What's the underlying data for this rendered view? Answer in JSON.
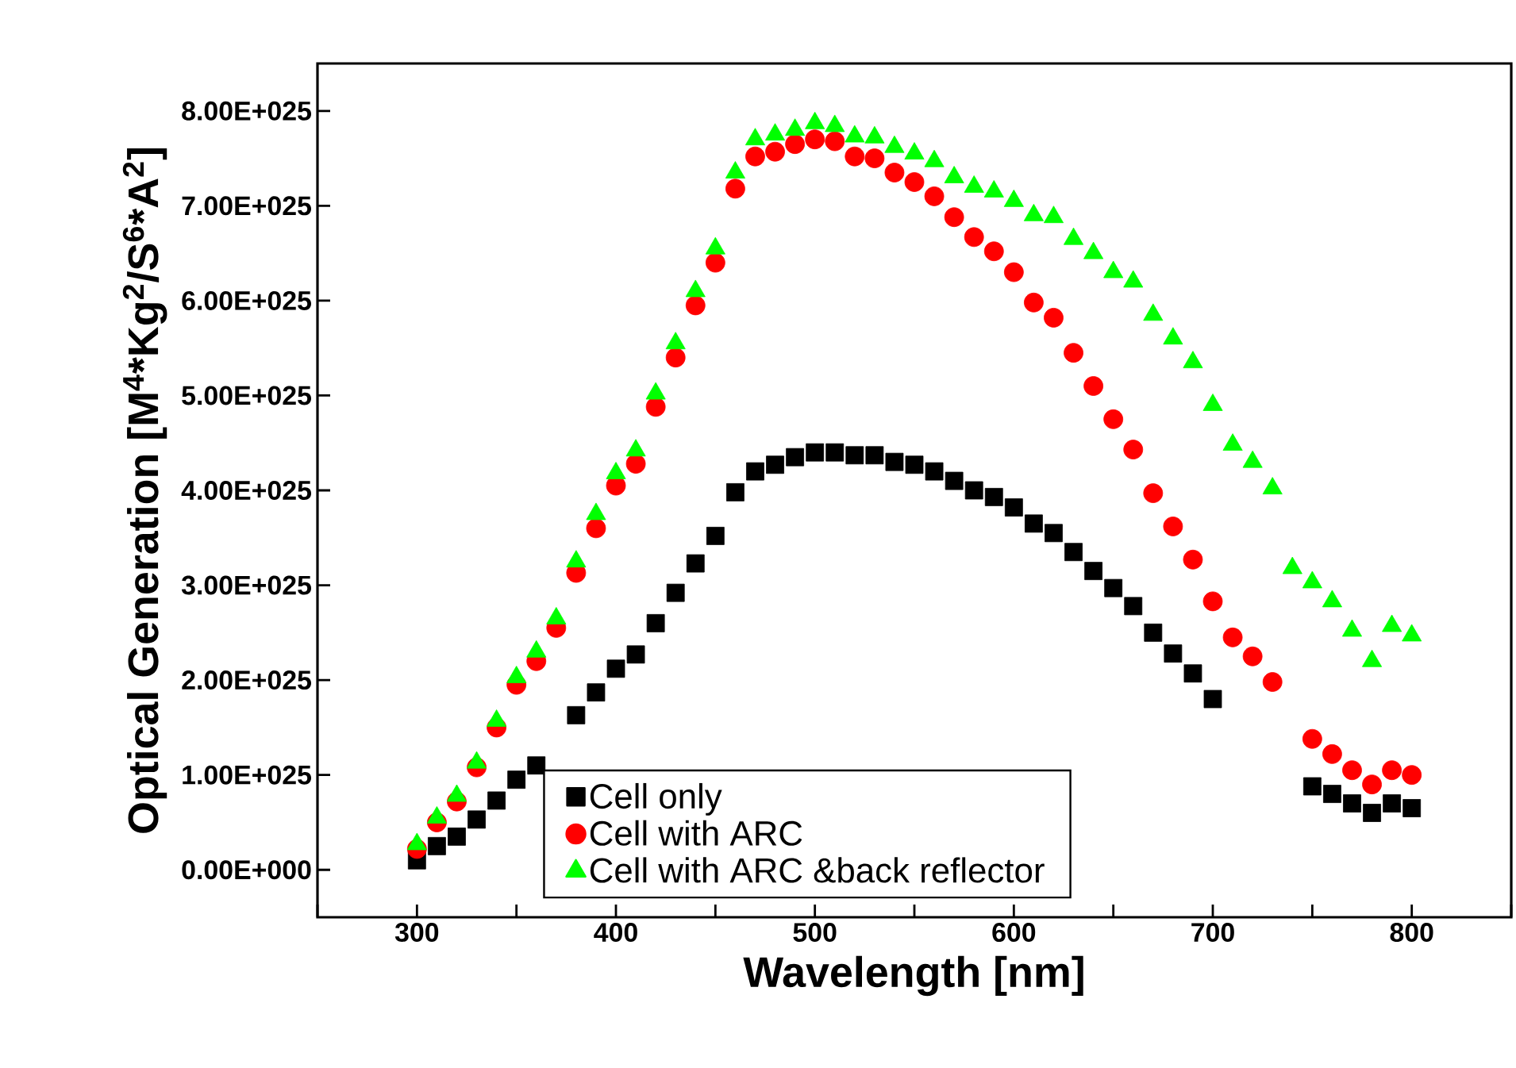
{
  "chart_data": {
    "type": "scatter",
    "xlabel": "Wavelength [nm]",
    "ylabel": "Optical Generation [M$^{4}$*Kg$^{2}$/S$^{6}$*A$^{2}$]",
    "x": [
      300,
      310,
      320,
      330,
      340,
      350,
      360,
      370,
      380,
      390,
      400,
      410,
      420,
      430,
      440,
      450,
      460,
      470,
      480,
      490,
      500,
      510,
      520,
      530,
      540,
      550,
      560,
      570,
      580,
      590,
      600,
      610,
      620,
      630,
      640,
      650,
      660,
      670,
      680,
      690,
      700,
      710,
      720,
      730,
      740,
      750,
      760,
      770,
      780,
      790,
      800
    ],
    "series": [
      {
        "name": "Cell only",
        "color": "#000000",
        "marker": "square",
        "values": [
          1e+24,
          2.5e+24,
          3.5e+24,
          5.3e+24,
          7.3e+24,
          9.5e+24,
          1.1e+25,
          null,
          1.63e+25,
          1.87e+25,
          2.12e+25,
          2.27e+25,
          2.6e+25,
          2.92e+25,
          3.23e+25,
          3.52e+25,
          3.98e+25,
          4.2e+25,
          4.27e+25,
          4.35e+25,
          4.4e+25,
          4.4e+25,
          4.37e+25,
          4.37e+25,
          4.3e+25,
          4.27e+25,
          4.2e+25,
          4.1e+25,
          4e+25,
          3.93e+25,
          3.82e+25,
          3.65e+25,
          3.55e+25,
          3.35e+25,
          3.15e+25,
          2.97e+25,
          2.78e+25,
          2.5e+25,
          2.28e+25,
          2.07e+25,
          1.8e+25,
          null,
          null,
          null,
          null,
          8.8e+24,
          8e+24,
          7e+24,
          6e+24,
          7e+24,
          6.5e+24
        ]
      },
      {
        "name": "Cell with ARC",
        "color": "#ff0000",
        "marker": "circle",
        "values": [
          2.2e+24,
          5e+24,
          7.2e+24,
          1.08e+25,
          1.5e+25,
          1.95e+25,
          2.2e+25,
          2.55e+25,
          3.13e+25,
          3.6e+25,
          4.05e+25,
          4.28e+25,
          4.88e+25,
          5.4e+25,
          5.95e+25,
          6.4e+25,
          7.18e+25,
          7.52e+25,
          7.57e+25,
          7.65e+25,
          7.7e+25,
          7.68e+25,
          7.52e+25,
          7.5e+25,
          7.35e+25,
          7.25e+25,
          7.1e+25,
          6.88e+25,
          6.67e+25,
          6.52e+25,
          6.3e+25,
          5.98e+25,
          5.82e+25,
          5.45e+25,
          5.1e+25,
          4.75e+25,
          4.43e+25,
          3.97e+25,
          3.62e+25,
          3.27e+25,
          2.83e+25,
          2.45e+25,
          2.25e+25,
          1.98e+25,
          null,
          1.38e+25,
          1.22e+25,
          1.05e+25,
          9e+24,
          1.05e+25,
          1e+25
        ]
      },
      {
        "name": "Cell with ARC &back reflector",
        "color": "#00ff00",
        "marker": "triangle",
        "values": [
          2.7e+24,
          5.5e+24,
          7.8e+24,
          1.13e+25,
          1.57e+25,
          2.03e+25,
          2.3e+25,
          2.65e+25,
          3.25e+25,
          3.75e+25,
          4.18e+25,
          4.42e+25,
          5.02e+25,
          5.55e+25,
          6.1e+25,
          6.55e+25,
          7.35e+25,
          7.7e+25,
          7.75e+25,
          7.8e+25,
          7.87e+25,
          7.84e+25,
          7.73e+25,
          7.72e+25,
          7.62e+25,
          7.55e+25,
          7.47e+25,
          7.3e+25,
          7.2e+25,
          7.15e+25,
          7.05e+25,
          6.9e+25,
          6.88e+25,
          6.65e+25,
          6.5e+25,
          6.3e+25,
          6.2e+25,
          5.85e+25,
          5.6e+25,
          5.35e+25,
          4.9e+25,
          4.48e+25,
          4.3e+25,
          4.02e+25,
          3.18e+25,
          3.03e+25,
          2.83e+25,
          2.52e+25,
          2.2e+25,
          2.57e+25,
          2.47e+25
        ]
      }
    ],
    "xlim": [
      250,
      850
    ],
    "xticks": [
      {
        "value": 250,
        "label": null
      },
      300,
      {
        "value": 350,
        "label": null
      },
      400,
      {
        "value": 450,
        "label": null
      },
      500,
      {
        "value": 550,
        "label": null
      },
      600,
      {
        "value": 650,
        "label": null
      },
      700,
      {
        "value": 750,
        "label": null
      },
      800,
      {
        "value": 850,
        "label": null
      }
    ],
    "ylim": [
      -5e+24,
      8.5e+25
    ],
    "yticks": [
      {
        "value": 0,
        "label": "0.00E+000"
      },
      {
        "value": 1e+25,
        "label": "1.00E+025"
      },
      {
        "value": 2e+25,
        "label": "2.00E+025"
      },
      {
        "value": 3e+25,
        "label": "3.00E+025"
      },
      {
        "value": 4e+25,
        "label": "4.00E+025"
      },
      {
        "value": 5e+25,
        "label": "5.00E+025"
      },
      {
        "value": 6e+25,
        "label": "6.00E+025"
      },
      {
        "value": 7e+25,
        "label": "7.00E+025"
      },
      {
        "value": 8e+25,
        "label": "8.00E+025"
      }
    ],
    "legend": "bottom",
    "grid": false
  }
}
